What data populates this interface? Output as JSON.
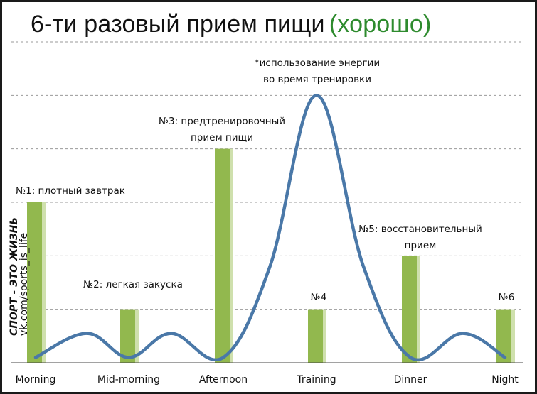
{
  "title": {
    "main": "6-ти разовый прием пищи",
    "accent": "(хорошо)"
  },
  "colors": {
    "bar": "#92b84e",
    "bar_edge": "#cfe0ad",
    "curve": "#4a78a8",
    "grid": "#9a9a9a",
    "accent": "#2e8b2e"
  },
  "watermark": {
    "line1": "СПОРТ - ЭТО ЖИЗНЬ",
    "line2": "vk.com/sports_is_life"
  },
  "chart_data": {
    "type": "bar",
    "categories": [
      "Morning",
      "Mid-morning",
      "Afternoon",
      "Training",
      "Dinner",
      "Night"
    ],
    "values": [
      3,
      1,
      4,
      1,
      2,
      1
    ],
    "ylim": [
      0,
      6
    ],
    "grid": true,
    "annotations": [
      {
        "category": "Morning",
        "lines": [
          "№1: плотный завтрак"
        ]
      },
      {
        "category": "Mid-morning",
        "lines": [
          "№2: легкая закуска"
        ]
      },
      {
        "category": "Afternoon",
        "lines": [
          "№3: предтренировочный",
          "прием пищи"
        ]
      },
      {
        "category": "Training",
        "lines": [
          "№4"
        ]
      },
      {
        "category": "Training",
        "lines": [
          "*использование энергии",
          "во время тренировки"
        ]
      },
      {
        "category": "Dinner",
        "lines": [
          "№5: восстановительный",
          "прием"
        ]
      },
      {
        "category": "Night",
        "lines": [
          "№6"
        ]
      }
    ],
    "energy_curve": {
      "x": [
        0,
        0.55,
        1,
        1.45,
        2,
        2.5,
        3,
        3.5,
        4,
        4.55,
        5
      ],
      "y": [
        0.1,
        0.55,
        0.1,
        0.55,
        0.1,
        1.8,
        5.0,
        1.8,
        0.1,
        0.55,
        0.1
      ]
    }
  }
}
